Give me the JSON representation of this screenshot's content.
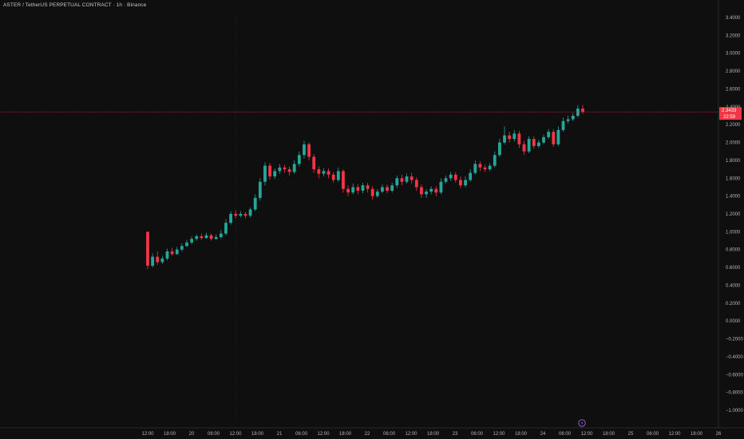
{
  "header": {
    "title": "ASTER / TetherUS PERPETUAL CONTRACT · 1h · Binance"
  },
  "colors": {
    "background": "#0f0f0f",
    "up": "#26a69a",
    "down": "#f23645",
    "price_line": "#f23645",
    "axis_text": "#b2b5be",
    "event_icon": "#8e5cc6"
  },
  "price_badge": {
    "price": "2.3433",
    "countdown": "22:59"
  },
  "event_marker": {
    "icon": "lightning-bolt-icon"
  },
  "chart_data": {
    "type": "candlestick",
    "title": "ASTER / TetherUS PERPETUAL CONTRACT · 1h · Binance",
    "interval": "1h",
    "grid": false,
    "ylim": [
      -1.0,
      3.4
    ],
    "y_ticks": [
      "3.4000",
      "3.2000",
      "3.0000",
      "2.8000",
      "2.6000",
      "2.4000",
      "2.2000",
      "2.0000",
      "1.8000",
      "1.6000",
      "1.4000",
      "1.2000",
      "1.0000",
      "0.8000",
      "0.6000",
      "0.4000",
      "0.2000",
      "0.0000",
      "−0.2000",
      "−0.4000",
      "−0.6000",
      "−0.8000",
      "−1.0000"
    ],
    "x_ticks": [
      "12:00",
      "18:00",
      "20",
      "06:00",
      "12:00",
      "18:00",
      "21",
      "06:00",
      "12:00",
      "18:00",
      "22",
      "06:00",
      "12:00",
      "18:00",
      "23",
      "06:00",
      "12:00",
      "18:00",
      "24",
      "06:00",
      "12:00",
      "18:00",
      "25",
      "06:00",
      "12:00",
      "18:00",
      "26"
    ],
    "last_price": 2.3433,
    "candles": [
      [
        1.0,
        0.62,
        1.0,
        0.58
      ],
      [
        0.62,
        0.72,
        0.76,
        0.6
      ],
      [
        0.72,
        0.66,
        0.78,
        0.63
      ],
      [
        0.66,
        0.7,
        0.73,
        0.64
      ],
      [
        0.7,
        0.78,
        0.81,
        0.68
      ],
      [
        0.78,
        0.75,
        0.82,
        0.73
      ],
      [
        0.75,
        0.8,
        0.83,
        0.74
      ],
      [
        0.8,
        0.84,
        0.87,
        0.78
      ],
      [
        0.84,
        0.88,
        0.91,
        0.83
      ],
      [
        0.88,
        0.92,
        0.95,
        0.86
      ],
      [
        0.92,
        0.95,
        0.97,
        0.9
      ],
      [
        0.95,
        0.93,
        0.98,
        0.91
      ],
      [
        0.93,
        0.96,
        0.99,
        0.92
      ],
      [
        0.96,
        0.92,
        0.98,
        0.9
      ],
      [
        0.92,
        0.94,
        0.97,
        0.91
      ],
      [
        0.94,
        0.98,
        1.02,
        0.92
      ],
      [
        0.98,
        1.1,
        1.14,
        0.96
      ],
      [
        1.1,
        1.2,
        1.23,
        1.08
      ],
      [
        1.2,
        1.18,
        1.24,
        1.15
      ],
      [
        1.18,
        1.2,
        1.23,
        1.16
      ],
      [
        1.2,
        1.18,
        1.22,
        1.15
      ],
      [
        1.18,
        1.25,
        1.27,
        1.16
      ],
      [
        1.25,
        1.38,
        1.42,
        1.23
      ],
      [
        1.38,
        1.56,
        1.6,
        1.35
      ],
      [
        1.56,
        1.74,
        1.78,
        1.52
      ],
      [
        1.74,
        1.62,
        1.77,
        1.58
      ],
      [
        1.62,
        1.68,
        1.71,
        1.59
      ],
      [
        1.68,
        1.72,
        1.76,
        1.65
      ],
      [
        1.72,
        1.7,
        1.75,
        1.66
      ],
      [
        1.7,
        1.67,
        1.73,
        1.63
      ],
      [
        1.67,
        1.76,
        1.8,
        1.65
      ],
      [
        1.76,
        1.86,
        1.9,
        1.73
      ],
      [
        1.86,
        1.98,
        2.02,
        1.82
      ],
      [
        1.98,
        1.84,
        2.0,
        1.8
      ],
      [
        1.84,
        1.7,
        1.87,
        1.66
      ],
      [
        1.7,
        1.65,
        1.73,
        1.6
      ],
      [
        1.65,
        1.68,
        1.71,
        1.62
      ],
      [
        1.68,
        1.64,
        1.71,
        1.6
      ],
      [
        1.64,
        1.58,
        1.67,
        1.55
      ],
      [
        1.58,
        1.68,
        1.72,
        1.56
      ],
      [
        1.68,
        1.48,
        1.7,
        1.44
      ],
      [
        1.48,
        1.44,
        1.52,
        1.4
      ],
      [
        1.44,
        1.5,
        1.54,
        1.42
      ],
      [
        1.5,
        1.46,
        1.53,
        1.42
      ],
      [
        1.46,
        1.52,
        1.55,
        1.43
      ],
      [
        1.52,
        1.48,
        1.55,
        1.44
      ],
      [
        1.48,
        1.4,
        1.51,
        1.36
      ],
      [
        1.4,
        1.45,
        1.48,
        1.38
      ],
      [
        1.45,
        1.5,
        1.53,
        1.43
      ],
      [
        1.5,
        1.46,
        1.53,
        1.43
      ],
      [
        1.46,
        1.52,
        1.55,
        1.44
      ],
      [
        1.52,
        1.6,
        1.63,
        1.49
      ],
      [
        1.6,
        1.56,
        1.64,
        1.52
      ],
      [
        1.56,
        1.62,
        1.65,
        1.54
      ],
      [
        1.62,
        1.58,
        1.66,
        1.54
      ],
      [
        1.58,
        1.5,
        1.61,
        1.46
      ],
      [
        1.5,
        1.42,
        1.53,
        1.38
      ],
      [
        1.42,
        1.45,
        1.48,
        1.38
      ],
      [
        1.45,
        1.48,
        1.51,
        1.42
      ],
      [
        1.48,
        1.44,
        1.51,
        1.4
      ],
      [
        1.44,
        1.56,
        1.6,
        1.42
      ],
      [
        1.56,
        1.6,
        1.63,
        1.54
      ],
      [
        1.6,
        1.64,
        1.67,
        1.57
      ],
      [
        1.64,
        1.58,
        1.67,
        1.55
      ],
      [
        1.58,
        1.52,
        1.62,
        1.49
      ],
      [
        1.52,
        1.58,
        1.62,
        1.5
      ],
      [
        1.58,
        1.66,
        1.7,
        1.56
      ],
      [
        1.66,
        1.76,
        1.8,
        1.64
      ],
      [
        1.76,
        1.72,
        1.79,
        1.68
      ],
      [
        1.72,
        1.7,
        1.75,
        1.67
      ],
      [
        1.7,
        1.74,
        1.77,
        1.68
      ],
      [
        1.74,
        1.86,
        1.9,
        1.72
      ],
      [
        1.86,
        2.0,
        2.04,
        1.84
      ],
      [
        2.0,
        2.08,
        2.18,
        1.98
      ],
      [
        2.08,
        2.04,
        2.12,
        2.0
      ],
      [
        2.04,
        2.1,
        2.14,
        2.01
      ],
      [
        2.1,
        1.98,
        2.13,
        1.94
      ],
      [
        1.98,
        1.9,
        2.02,
        1.86
      ],
      [
        1.9,
        2.04,
        2.07,
        1.88
      ],
      [
        2.04,
        1.96,
        2.07,
        1.93
      ],
      [
        1.96,
        2.0,
        2.03,
        1.94
      ],
      [
        2.0,
        2.06,
        2.09,
        1.98
      ],
      [
        2.06,
        2.12,
        2.15,
        2.04
      ],
      [
        2.12,
        1.98,
        2.15,
        1.95
      ],
      [
        1.98,
        2.14,
        2.18,
        1.96
      ],
      [
        2.14,
        2.24,
        2.28,
        2.12
      ],
      [
        2.24,
        2.26,
        2.3,
        2.21
      ],
      [
        2.26,
        2.3,
        2.33,
        2.24
      ],
      [
        2.3,
        2.38,
        2.42,
        2.28
      ],
      [
        2.38,
        2.3433,
        2.42,
        2.32
      ]
    ]
  }
}
